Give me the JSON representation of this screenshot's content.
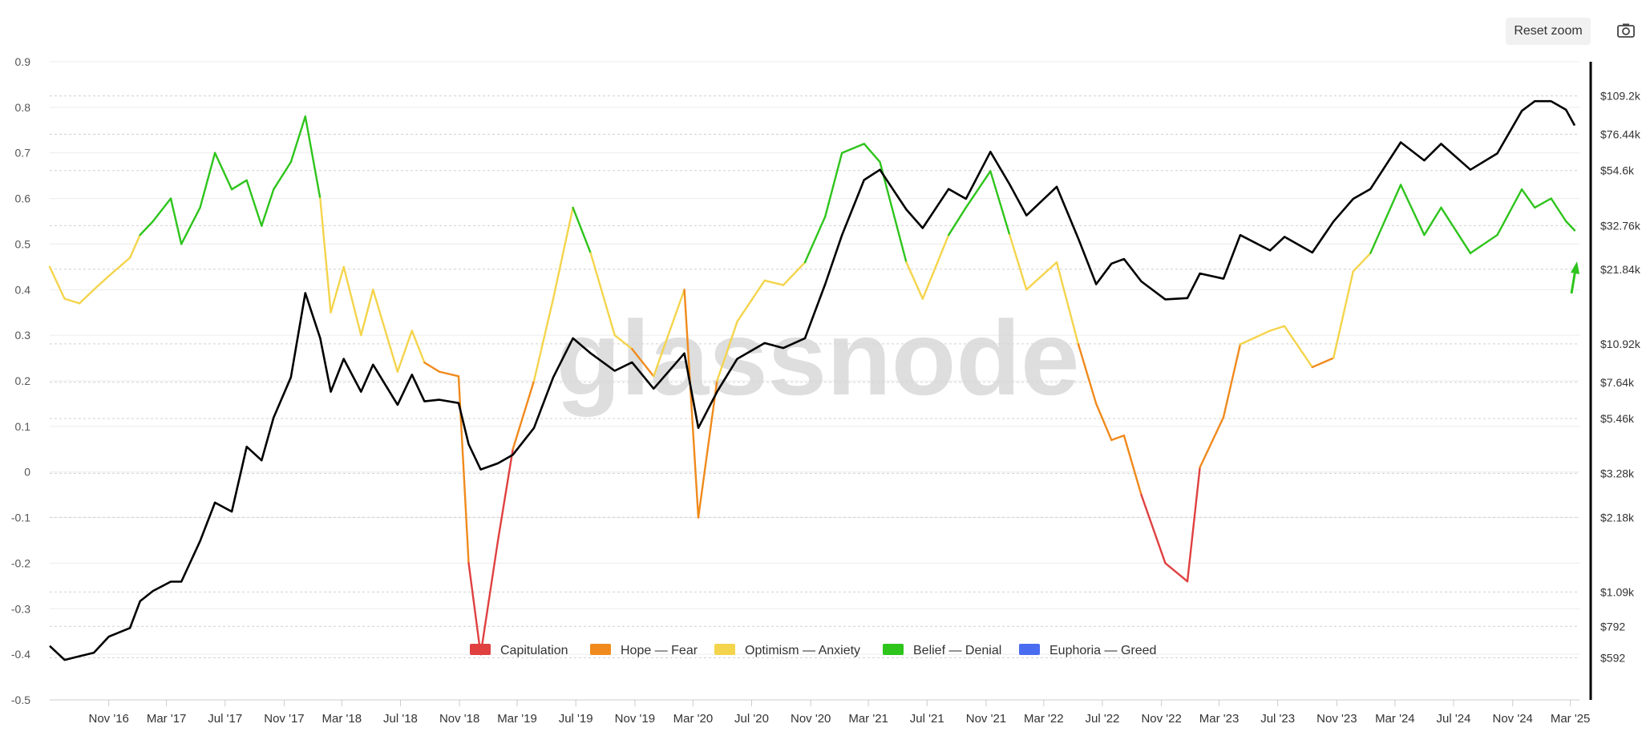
{
  "toolbar": {
    "reset_zoom_label": "Reset zoom",
    "camera_icon": "camera-icon"
  },
  "watermark": "glassnode",
  "chart_data": {
    "type": "line",
    "title": "",
    "xlabel": "",
    "ylabel": "",
    "left_axis": {
      "ylim": [
        -0.5,
        0.9
      ],
      "ticks": [
        "0.9",
        "0.8",
        "0.7",
        "0.6",
        "0.5",
        "0.4",
        "0.3",
        "0.2",
        "0.1",
        "0",
        "-0.1",
        "-0.2",
        "-0.3",
        "-0.4",
        "-0.5"
      ]
    },
    "right_axis": {
      "scale": "log",
      "ylim": [
        400,
        150000
      ],
      "ticks": [
        {
          "label": "$109.2k",
          "value": 109200
        },
        {
          "label": "$76.44k",
          "value": 76440
        },
        {
          "label": "$54.6k",
          "value": 54600
        },
        {
          "label": "$32.76k",
          "value": 32760
        },
        {
          "label": "$21.84k",
          "value": 21840
        },
        {
          "label": "$10.92k",
          "value": 10920
        },
        {
          "label": "$7.64k",
          "value": 7640
        },
        {
          "label": "$5.46k",
          "value": 5460
        },
        {
          "label": "$3.28k",
          "value": 3280
        },
        {
          "label": "$2.18k",
          "value": 2180
        },
        {
          "label": "$1.09k",
          "value": 1090
        },
        {
          "label": "$792",
          "value": 792
        },
        {
          "label": "$592",
          "value": 592
        }
      ]
    },
    "x_ticks": [
      "Nov '16",
      "Mar '17",
      "Jul '17",
      "Nov '17",
      "Mar '18",
      "Jul '18",
      "Nov '18",
      "Mar '19",
      "Jul '19",
      "Nov '19",
      "Mar '20",
      "Jul '20",
      "Nov '20",
      "Mar '21",
      "Jul '21",
      "Nov '21",
      "Mar '22",
      "Jul '22",
      "Nov '22",
      "Mar '23",
      "Jul '23",
      "Nov '23",
      "Mar '24",
      "Jul '24",
      "Nov '24",
      "Mar '25"
    ],
    "x_range": [
      "2016-07-01",
      "2025-03-20"
    ],
    "legend_position": "bottom-center",
    "legend": [
      {
        "name": "Capitulation",
        "color": "#e04040"
      },
      {
        "name": "Hope — Fear",
        "color": "#f08a1c"
      },
      {
        "name": "Optimism — Anxiety",
        "color": "#f4d44c"
      },
      {
        "name": "Belief — Denial",
        "color": "#2ec41c"
      },
      {
        "name": "Euphoria — Greed",
        "color": "#4a6cf0"
      }
    ],
    "zone_bounds": {
      "Capitulation": [
        -0.5,
        0
      ],
      "Hope — Fear": [
        0,
        0.25
      ],
      "Optimism — Anxiety": [
        0.25,
        0.5
      ],
      "Belief — Denial": [
        0.5,
        0.75
      ],
      "Euphoria — Greed": [
        0.75,
        1.0
      ]
    },
    "nupl": {
      "x": [
        "2016-07-01",
        "2016-08-01",
        "2016-09-01",
        "2016-10-01",
        "2016-11-01",
        "2016-12-15",
        "2017-01-05",
        "2017-02-01",
        "2017-03-10",
        "2017-04-01",
        "2017-05-10",
        "2017-06-10",
        "2017-07-15",
        "2017-08-15",
        "2017-09-15",
        "2017-10-10",
        "2017-11-15",
        "2017-12-15",
        "2018-01-15",
        "2018-02-06",
        "2018-03-05",
        "2018-04-10",
        "2018-05-05",
        "2018-06-25",
        "2018-07-25",
        "2018-08-20",
        "2018-09-20",
        "2018-10-30",
        "2018-11-20",
        "2018-12-15",
        "2019-01-20",
        "2019-02-20",
        "2019-04-05",
        "2019-05-15",
        "2019-06-25",
        "2019-08-01",
        "2019-09-20",
        "2019-10-26",
        "2019-12-10",
        "2020-02-12",
        "2020-03-12",
        "2020-04-20",
        "2020-06-01",
        "2020-07-28",
        "2020-09-05",
        "2020-10-20",
        "2020-12-01",
        "2021-01-05",
        "2021-02-20",
        "2021-03-25",
        "2021-05-19",
        "2021-06-22",
        "2021-08-15",
        "2021-09-20",
        "2021-11-10",
        "2021-12-20",
        "2022-01-24",
        "2022-03-28",
        "2022-05-12",
        "2022-06-18",
        "2022-07-20",
        "2022-08-15",
        "2022-09-20",
        "2022-11-09",
        "2022-12-25",
        "2023-01-20",
        "2023-03-10",
        "2023-04-14",
        "2023-06-15",
        "2023-07-15",
        "2023-09-11",
        "2023-10-25",
        "2023-12-05",
        "2024-01-10",
        "2024-03-13",
        "2024-05-01",
        "2024-06-05",
        "2024-08-05",
        "2024-09-30",
        "2024-11-20",
        "2024-12-17",
        "2025-01-20",
        "2025-02-20",
        "2025-03-10"
      ],
      "y": [
        0.45,
        0.38,
        0.37,
        0.4,
        0.43,
        0.47,
        0.52,
        0.55,
        0.6,
        0.5,
        0.58,
        0.7,
        0.62,
        0.64,
        0.54,
        0.62,
        0.68,
        0.78,
        0.6,
        0.35,
        0.45,
        0.3,
        0.4,
        0.22,
        0.31,
        0.24,
        0.22,
        0.21,
        -0.2,
        -0.4,
        -0.15,
        0.05,
        0.2,
        0.38,
        0.58,
        0.48,
        0.3,
        0.27,
        0.21,
        0.4,
        -0.1,
        0.2,
        0.33,
        0.42,
        0.41,
        0.46,
        0.56,
        0.7,
        0.72,
        0.68,
        0.46,
        0.38,
        0.52,
        0.58,
        0.66,
        0.52,
        0.4,
        0.46,
        0.28,
        0.15,
        0.07,
        0.08,
        -0.05,
        -0.2,
        -0.24,
        0.01,
        0.12,
        0.28,
        0.31,
        0.32,
        0.23,
        0.25,
        0.44,
        0.48,
        0.63,
        0.52,
        0.58,
        0.48,
        0.52,
        0.62,
        0.58,
        0.6,
        0.55,
        0.53
      ]
    },
    "btc_price": {
      "x": [
        "2016-07-01",
        "2016-08-01",
        "2016-09-01",
        "2016-10-01",
        "2016-11-01",
        "2016-12-15",
        "2017-01-05",
        "2017-02-01",
        "2017-03-10",
        "2017-04-01",
        "2017-05-10",
        "2017-06-10",
        "2017-07-15",
        "2017-08-15",
        "2017-09-15",
        "2017-10-10",
        "2017-11-15",
        "2017-12-15",
        "2018-01-15",
        "2018-02-06",
        "2018-03-05",
        "2018-04-10",
        "2018-05-05",
        "2018-06-25",
        "2018-07-25",
        "2018-08-20",
        "2018-09-20",
        "2018-10-30",
        "2018-11-20",
        "2018-12-15",
        "2019-01-20",
        "2019-02-20",
        "2019-04-05",
        "2019-05-15",
        "2019-06-25",
        "2019-08-01",
        "2019-09-20",
        "2019-10-26",
        "2019-12-10",
        "2020-02-12",
        "2020-03-12",
        "2020-04-20",
        "2020-06-01",
        "2020-07-28",
        "2020-09-05",
        "2020-10-20",
        "2020-12-01",
        "2021-01-05",
        "2021-02-20",
        "2021-03-25",
        "2021-05-19",
        "2021-06-22",
        "2021-08-15",
        "2021-09-20",
        "2021-11-10",
        "2021-12-20",
        "2022-01-24",
        "2022-03-28",
        "2022-05-12",
        "2022-06-18",
        "2022-07-20",
        "2022-08-15",
        "2022-09-20",
        "2022-11-09",
        "2022-12-25",
        "2023-01-20",
        "2023-03-10",
        "2023-04-14",
        "2023-06-15",
        "2023-07-15",
        "2023-09-11",
        "2023-10-25",
        "2023-12-05",
        "2024-01-10",
        "2024-03-13",
        "2024-05-01",
        "2024-06-05",
        "2024-08-05",
        "2024-09-30",
        "2024-11-20",
        "2024-12-17",
        "2025-01-20",
        "2025-02-20",
        "2025-03-10"
      ],
      "y": [
        660,
        580,
        600,
        620,
        720,
        780,
        1000,
        1100,
        1200,
        1200,
        1750,
        2500,
        2300,
        4200,
        3700,
        5500,
        8000,
        17500,
        11500,
        7000,
        9500,
        7000,
        9000,
        6200,
        8200,
        6400,
        6500,
        6300,
        4300,
        3400,
        3600,
        3900,
        5000,
        8000,
        11500,
        10000,
        8500,
        9200,
        7200,
        10000,
        5000,
        7000,
        9500,
        11000,
        10500,
        11500,
        19000,
        30000,
        50000,
        55000,
        38000,
        32000,
        46000,
        42000,
        65000,
        48000,
        36000,
        47000,
        29000,
        19000,
        23000,
        24000,
        19500,
        16500,
        16700,
        21000,
        20000,
        30000,
        26000,
        29500,
        25500,
        34000,
        42000,
        46000,
        71000,
        60000,
        70000,
        55000,
        64000,
        95000,
        104000,
        104000,
        96000,
        83000
      ]
    }
  }
}
